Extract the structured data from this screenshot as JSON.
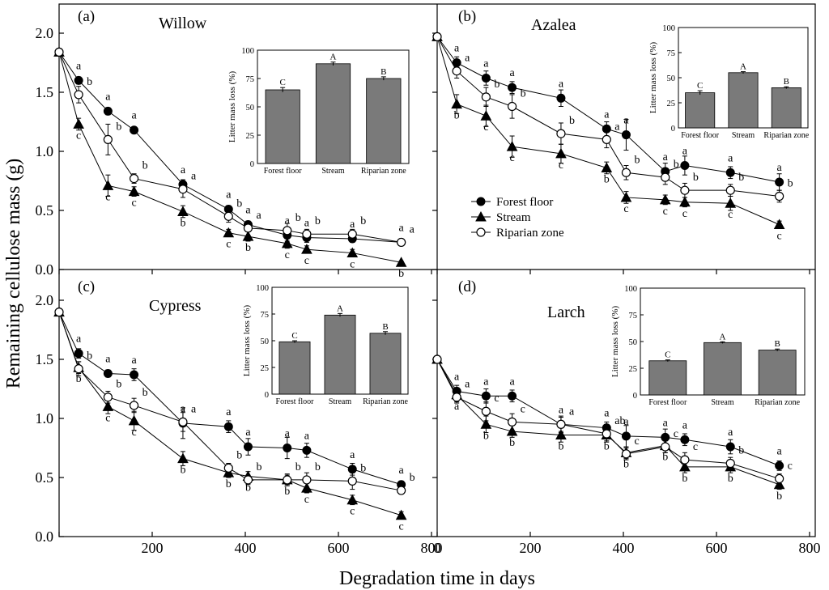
{
  "figure": {
    "y_axis_title": "Remaining cellulose mass (g)",
    "x_axis_title": "Degradation time in days",
    "x_ticks": [
      "0",
      "200",
      "400",
      "600",
      "800"
    ],
    "y_ticks": [
      "0.0",
      "0.5",
      "1.0",
      "1.5",
      "2.0"
    ],
    "colors": {
      "bar_fill": "#7a7a7a",
      "ink": "#000000"
    }
  },
  "legend": {
    "items": [
      {
        "label": "Forest floor",
        "marker": "filled-circle"
      },
      {
        "label": "Stream",
        "marker": "filled-triangle"
      },
      {
        "label": "Riparian zone",
        "marker": "open-circle"
      }
    ]
  },
  "chart_data": [
    {
      "type": "line",
      "panel": "(a)",
      "title": "Willow",
      "xlabel": "Degradation time in days",
      "ylabel": "Remaining cellulose mass (g)",
      "xlim": [
        0,
        800
      ],
      "ylim": [
        0,
        2.1
      ],
      "x": [
        0,
        42,
        105,
        161,
        266,
        364,
        406,
        490,
        532,
        630,
        735
      ],
      "series": [
        {
          "name": "Forest floor",
          "values": [
            1.84,
            1.6,
            1.34,
            1.18,
            0.72,
            0.51,
            0.38,
            0.29,
            0.27,
            0.26,
            0.23
          ],
          "errors": [
            0.02,
            0.03,
            0.03,
            0.02,
            0.04,
            0.03,
            0.03,
            0.05,
            0.04,
            0.03,
            0.02
          ],
          "letters": [
            "",
            "a",
            "a",
            "a",
            "a",
            "a",
            "a",
            "a",
            "a",
            "a",
            "a"
          ]
        },
        {
          "name": "Stream",
          "values": [
            1.84,
            1.23,
            0.71,
            0.66,
            0.49,
            0.31,
            0.28,
            0.22,
            0.17,
            0.14,
            0.06
          ],
          "errors": [
            0.02,
            0.05,
            0.09,
            0.04,
            0.05,
            0.03,
            0.04,
            0.04,
            0.03,
            0.03,
            0.01
          ],
          "letters": [
            "",
            "c",
            "c",
            "c",
            "b",
            "c",
            "b",
            "c",
            "c",
            "c",
            "b"
          ]
        },
        {
          "name": "Riparian zone",
          "values": [
            1.84,
            1.48,
            1.1,
            0.77,
            0.68,
            0.45,
            0.35,
            0.33,
            0.3,
            0.3,
            0.23
          ],
          "errors": [
            0.02,
            0.07,
            0.13,
            0.04,
            0.07,
            0.05,
            0.03,
            0.06,
            0.04,
            0.04,
            0.02
          ],
          "letters": [
            "",
            "b",
            "b",
            "b",
            "a",
            "b",
            "a",
            "b",
            "b",
            "b",
            "a"
          ]
        }
      ],
      "inset": {
        "categories": [
          "Forest floor",
          "Stream",
          "Riparian zone"
        ],
        "values": [
          65,
          88,
          75
        ],
        "errors": [
          2,
          1.5,
          1.5
        ],
        "letters": [
          "C",
          "A",
          "B"
        ],
        "ylabel": "Litter mass loss (%)",
        "ylim": [
          0,
          100
        ],
        "yticks": [
          "0",
          "25",
          "50",
          "75",
          "100"
        ]
      }
    },
    {
      "type": "line",
      "panel": "(b)",
      "title": "Azalea",
      "xlabel": "Degradation time in days",
      "ylabel": "Remaining cellulose mass (g)",
      "xlim": [
        0,
        800
      ],
      "ylim": [
        0,
        2.1
      ],
      "x": [
        0,
        42,
        105,
        161,
        266,
        364,
        406,
        490,
        532,
        630,
        735
      ],
      "series": [
        {
          "name": "Forest floor",
          "values": [
            1.97,
            1.75,
            1.62,
            1.54,
            1.45,
            1.19,
            1.14,
            0.83,
            0.88,
            0.82,
            0.74
          ],
          "errors": [
            0.02,
            0.05,
            0.06,
            0.05,
            0.07,
            0.06,
            0.13,
            0.07,
            0.08,
            0.05,
            0.07
          ],
          "letters": [
            "",
            "a",
            "a",
            "a",
            "a",
            "a",
            "a",
            "a",
            "a",
            "a",
            "a"
          ]
        },
        {
          "name": "Stream",
          "values": [
            1.97,
            1.4,
            1.3,
            1.04,
            0.98,
            0.86,
            0.61,
            0.59,
            0.57,
            0.56,
            0.38
          ],
          "errors": [
            0.02,
            0.08,
            0.09,
            0.09,
            0.08,
            0.05,
            0.05,
            0.04,
            0.04,
            0.06,
            0.03
          ],
          "letters": [
            "",
            "b",
            "c",
            "c",
            "c",
            "b",
            "c",
            "c",
            "c",
            "c",
            "c"
          ]
        },
        {
          "name": "Riparian zone",
          "values": [
            1.97,
            1.68,
            1.46,
            1.38,
            1.15,
            1.1,
            0.82,
            0.78,
            0.67,
            0.67,
            0.62
          ],
          "errors": [
            0.02,
            0.06,
            0.08,
            0.1,
            0.09,
            0.07,
            0.06,
            0.06,
            0.06,
            0.05,
            0.05
          ],
          "letters": [
            "",
            "a",
            "b",
            "b",
            "b",
            "a",
            "b",
            "b",
            "b",
            "b",
            "b"
          ]
        }
      ],
      "inset": {
        "categories": [
          "Forest floor",
          "Stream",
          "Riparian zone"
        ],
        "values": [
          35,
          55,
          40
        ],
        "errors": [
          2,
          1,
          1
        ],
        "letters": [
          "C",
          "A",
          "B"
        ],
        "ylabel": "Litter mass loss (%)",
        "ylim": [
          0,
          100
        ],
        "yticks": [
          "0",
          "25",
          "50",
          "75",
          "100"
        ]
      }
    },
    {
      "type": "line",
      "panel": "(c)",
      "title": "Cypress",
      "xlabel": "Degradation time in days",
      "ylabel": "Remaining cellulose mass (g)",
      "xlim": [
        0,
        800
      ],
      "ylim": [
        0,
        2.1
      ],
      "x": [
        0,
        42,
        105,
        161,
        266,
        364,
        406,
        490,
        532,
        630,
        735
      ],
      "series": [
        {
          "name": "Forest floor",
          "values": [
            1.9,
            1.55,
            1.38,
            1.37,
            0.96,
            0.93,
            0.76,
            0.75,
            0.73,
            0.57,
            0.44
          ],
          "errors": [
            0.02,
            0.04,
            0.03,
            0.05,
            0.13,
            0.05,
            0.07,
            0.09,
            0.06,
            0.05,
            0.03
          ],
          "letters": [
            "",
            "a",
            "a",
            "a",
            "a",
            "a",
            "a",
            "a",
            "a",
            "a",
            "a"
          ]
        },
        {
          "name": "Stream",
          "values": [
            1.9,
            1.43,
            1.1,
            0.98,
            0.66,
            0.54,
            0.51,
            0.48,
            0.41,
            0.31,
            0.18
          ],
          "errors": [
            0.02,
            0.05,
            0.06,
            0.08,
            0.06,
            0.04,
            0.04,
            0.04,
            0.04,
            0.04,
            0.03
          ],
          "letters": [
            "",
            "b",
            "c",
            "c",
            "b",
            "b",
            "b",
            "b",
            "c",
            "c",
            "c"
          ]
        },
        {
          "name": "Riparian zone",
          "values": [
            1.9,
            1.42,
            1.18,
            1.11,
            0.97,
            0.58,
            0.48,
            0.48,
            0.48,
            0.47,
            0.39
          ],
          "errors": [
            0.02,
            0.06,
            0.05,
            0.06,
            0.08,
            0.04,
            0.04,
            0.05,
            0.06,
            0.07,
            0.03
          ],
          "letters": [
            "",
            "b",
            "b",
            "b",
            "a",
            "b",
            "b",
            "b",
            "b",
            "b",
            "b"
          ]
        }
      ],
      "inset": {
        "categories": [
          "Forest floor",
          "Stream",
          "Riparian zone"
        ],
        "values": [
          49,
          74,
          57
        ],
        "errors": [
          1,
          1.5,
          1.5
        ],
        "letters": [
          "C",
          "A",
          "B"
        ],
        "ylabel": "Litter mass loss (%)",
        "ylim": [
          0,
          100
        ],
        "yticks": [
          "0",
          "25",
          "50",
          "75",
          "100"
        ]
      }
    },
    {
      "type": "line",
      "panel": "(d)",
      "title": "Larch",
      "xlabel": "Degradation time in days",
      "ylabel": "Remaining cellulose mass (g)",
      "xlim": [
        0,
        800
      ],
      "ylim": [
        0,
        2.1
      ],
      "x": [
        0,
        42,
        105,
        161,
        266,
        364,
        406,
        490,
        532,
        630,
        735
      ],
      "series": [
        {
          "name": "Forest floor",
          "values": [
            1.5,
            1.23,
            1.19,
            1.19,
            0.95,
            0.92,
            0.85,
            0.84,
            0.82,
            0.76,
            0.6
          ],
          "errors": [
            0.02,
            0.05,
            0.06,
            0.05,
            0.06,
            0.05,
            0.09,
            0.07,
            0.05,
            0.06,
            0.04
          ],
          "letters": [
            "",
            "a",
            "a",
            "a",
            "a",
            "a",
            "a",
            "a",
            "a",
            "a",
            "a"
          ]
        },
        {
          "name": "Stream",
          "values": [
            1.5,
            1.2,
            0.95,
            0.89,
            0.86,
            0.86,
            0.71,
            0.77,
            0.59,
            0.59,
            0.44
          ],
          "errors": [
            0.02,
            0.06,
            0.07,
            0.05,
            0.06,
            0.06,
            0.05,
            0.06,
            0.05,
            0.05,
            0.04
          ],
          "letters": [
            "",
            "a",
            "b",
            "b",
            "b",
            "b",
            "b",
            "b",
            "b",
            "b",
            "b"
          ]
        },
        {
          "name": "Riparian zone",
          "values": [
            1.5,
            1.18,
            1.06,
            0.97,
            0.95,
            0.87,
            0.7,
            0.76,
            0.65,
            0.62,
            0.49
          ],
          "errors": [
            0.02,
            0.05,
            0.08,
            0.07,
            0.07,
            0.06,
            0.05,
            0.05,
            0.06,
            0.05,
            0.04
          ],
          "letters": [
            "",
            "a",
            "c",
            "c",
            "a",
            "ab",
            "c",
            "c",
            "c",
            "b",
            "c"
          ]
        }
      ],
      "inset": {
        "categories": [
          "Forest floor",
          "Stream",
          "Riparian zone"
        ],
        "values": [
          32,
          49,
          42
        ],
        "errors": [
          0.8,
          0.8,
          1
        ],
        "letters": [
          "C",
          "A",
          "B"
        ],
        "ylabel": "Litter mass loss (%)",
        "ylim": [
          0,
          100
        ],
        "yticks": [
          "0",
          "25",
          "50",
          "75",
          "100"
        ]
      }
    }
  ]
}
